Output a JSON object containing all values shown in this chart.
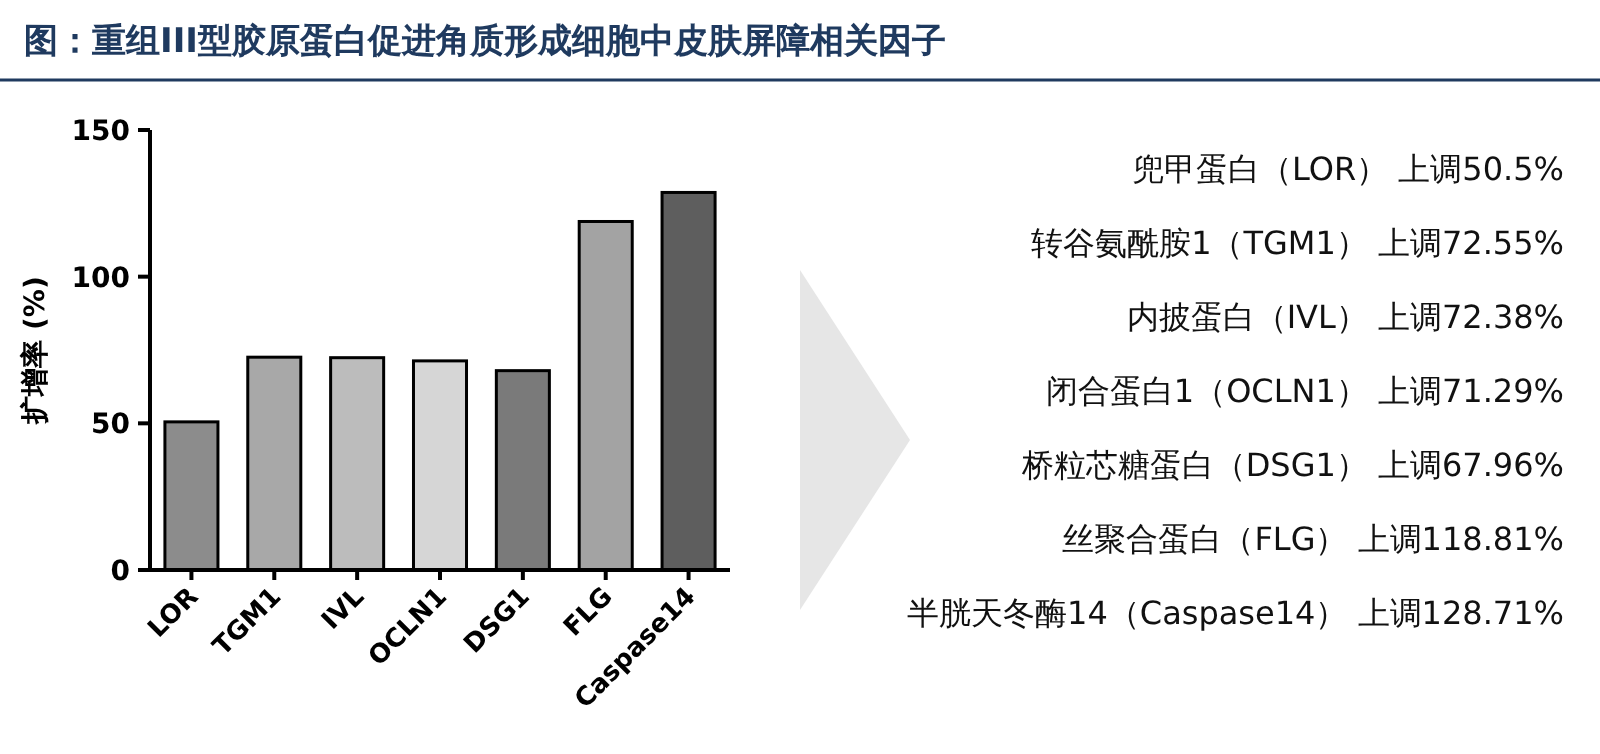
{
  "chart_data": [
    {
      "type": "bar",
      "title": "图：重组III型胶原蛋白促进角质形成细胞中皮肤屏障相关因子",
      "ylabel": "扩增率 (%)",
      "categories": [
        "LOR",
        "TGM1",
        "IVL",
        "OCLN1",
        "DSG1",
        "FLG",
        "Caspase14"
      ],
      "values": [
        50.5,
        72.55,
        72.38,
        71.29,
        67.96,
        118.81,
        128.71
      ],
      "colors": [
        "#8c8c8c",
        "#a8a8a8",
        "#bcbcbc",
        "#d6d6d6",
        "#7a7a7a",
        "#a3a3a3",
        "#5e5e5e"
      ],
      "ylim": [
        0,
        150
      ],
      "yticks": [
        0,
        50,
        100,
        150
      ]
    },
    {
      "type": "other",
      "annotations": [
        "兜甲蛋白（LOR） 上调50.5%",
        "转谷氨酰胺1（TGM1） 上调72.55%",
        "内披蛋白（IVL） 上调72.38%",
        "闭合蛋白1（OCLN1） 上调71.29%",
        "桥粒芯糖蛋白（DSG1） 上调67.96%",
        "丝聚合蛋白（FLG） 上调118.81%",
        "半胱天冬酶14（Caspase14） 上调128.71%"
      ]
    }
  ]
}
